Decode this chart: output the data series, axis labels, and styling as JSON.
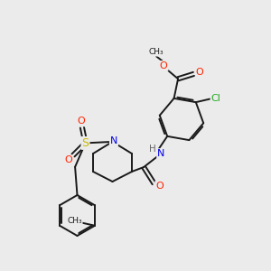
{
  "background_color": "#ebebeb",
  "bond_color": "#1a1a1a",
  "atom_colors": {
    "O": "#ff2200",
    "N": "#0000ee",
    "S": "#ccbb00",
    "Cl": "#22aa22",
    "H": "#666666",
    "C": "#1a1a1a"
  },
  "figsize": [
    3.0,
    3.0
  ],
  "dpi": 100
}
